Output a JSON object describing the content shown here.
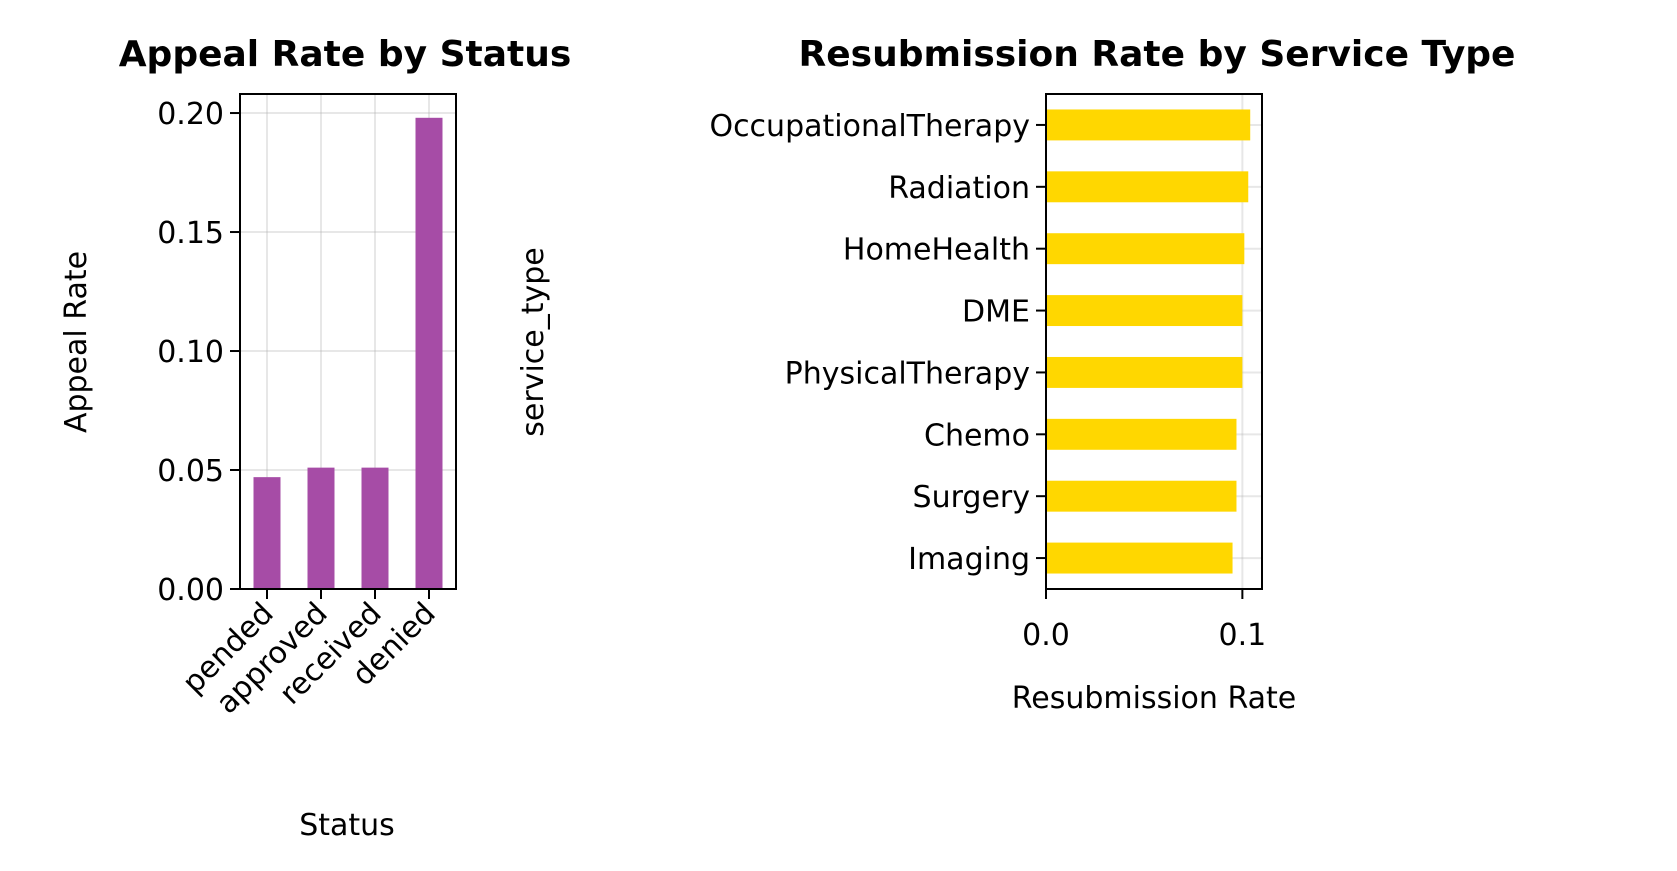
{
  "chart_data": [
    {
      "type": "bar",
      "title": "Appeal Rate by Status",
      "xlabel": "Status",
      "ylabel": "Appeal Rate",
      "categories": [
        "pended",
        "approved",
        "received",
        "denied"
      ],
      "values": [
        0.047,
        0.051,
        0.051,
        0.198
      ],
      "ylim": [
        0,
        0.208
      ],
      "yticks": [
        0.0,
        0.05,
        0.1,
        0.15,
        0.2
      ],
      "ytick_labels": [
        "0.00",
        "0.05",
        "0.10",
        "0.15",
        "0.20"
      ],
      "grid": true,
      "color": "#a64ca6"
    },
    {
      "type": "bar",
      "orientation": "horizontal",
      "title": "Resubmission Rate by Service Type",
      "xlabel": "Resubmission Rate",
      "ylabel": "service_type",
      "categories": [
        "Imaging",
        "Surgery",
        "Chemo",
        "PhysicalTherapy",
        "DME",
        "HomeHealth",
        "Radiation",
        "OccupationalTherapy"
      ],
      "values": [
        0.095,
        0.097,
        0.097,
        0.1,
        0.1,
        0.101,
        0.103,
        0.104
      ],
      "xlim": [
        0,
        0.11
      ],
      "xticks": [
        0.0,
        0.1
      ],
      "xtick_labels": [
        "0.0",
        "0.1"
      ],
      "grid": true,
      "color": "#ffd700"
    }
  ]
}
